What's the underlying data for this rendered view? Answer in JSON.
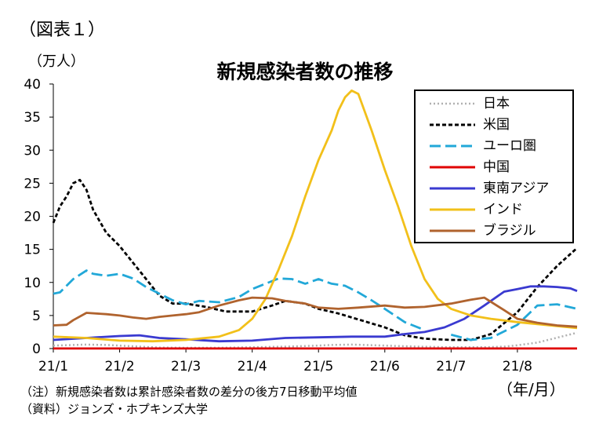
{
  "figure_label": "（図表１）",
  "unit_label": "（万人）",
  "axis_unit": "（年/月）",
  "notes": {
    "note": "（注）新規感染者数は累計感染者数の差分の後方7日移動平均値",
    "source": "（資料）ジョンズ・ホプキンズ大学"
  },
  "chart_data": {
    "type": "line",
    "title": "新規感染者数の推移",
    "ylim": [
      0,
      40
    ],
    "yticks": [
      "0",
      "5",
      "10",
      "15",
      "20",
      "25",
      "30",
      "35",
      "40"
    ],
    "xlim": [
      0,
      7.9
    ],
    "x_tick_labels": [
      "21/1",
      "21/2",
      "21/3",
      "21/4",
      "21/5",
      "21/6",
      "21/7",
      "21/8"
    ],
    "grid": false,
    "legend_position": "top-right",
    "x_unit": "month index (0 = 21/1)",
    "series": [
      {
        "name": "日本",
        "color": "#b0b0b0",
        "style": "dotted",
        "x": [
          0,
          0.3,
          0.5,
          0.8,
          1.0,
          1.3,
          1.6,
          2.0,
          2.5,
          3.0,
          3.5,
          4.0,
          4.2,
          4.5,
          5.0,
          5.5,
          6.0,
          6.5,
          6.8,
          7.0,
          7.3,
          7.5,
          7.7,
          7.9
        ],
        "y": [
          0.45,
          0.55,
          0.6,
          0.55,
          0.45,
          0.3,
          0.15,
          0.12,
          0.12,
          0.2,
          0.3,
          0.45,
          0.55,
          0.6,
          0.45,
          0.3,
          0.2,
          0.2,
          0.3,
          0.5,
          0.9,
          1.4,
          1.9,
          2.4
        ]
      },
      {
        "name": "米国",
        "color": "#000000",
        "style": "dashed",
        "x": [
          0,
          0.1,
          0.2,
          0.3,
          0.4,
          0.5,
          0.6,
          0.8,
          1.0,
          1.2,
          1.4,
          1.6,
          1.8,
          2.0,
          2.3,
          2.6,
          3.0,
          3.3,
          3.5,
          3.8,
          4.0,
          4.3,
          4.6,
          5.0,
          5.3,
          5.6,
          6.0,
          6.3,
          6.6,
          7.0,
          7.3,
          7.6,
          7.9
        ],
        "y": [
          19,
          21.5,
          23,
          25,
          25.5,
          24,
          21,
          17.5,
          15.5,
          13,
          10.5,
          8,
          6.8,
          6.8,
          6.3,
          5.6,
          5.6,
          6.5,
          7.2,
          6.8,
          6,
          5.3,
          4.4,
          3.2,
          2,
          1.5,
          1.3,
          1.3,
          2.2,
          5.5,
          9.3,
          12.5,
          15.2
        ]
      },
      {
        "name": "ユーロ圏",
        "color": "#22a8d8",
        "style": "longdash",
        "x": [
          0,
          0.1,
          0.2,
          0.3,
          0.5,
          0.6,
          0.8,
          1.0,
          1.2,
          1.4,
          1.6,
          1.8,
          2.0,
          2.2,
          2.5,
          2.8,
          3.0,
          3.2,
          3.4,
          3.6,
          3.8,
          4.0,
          4.2,
          4.4,
          4.6,
          4.8,
          5.0,
          5.3,
          5.6,
          6.0,
          6.3,
          6.6,
          7.0,
          7.3,
          7.6,
          7.9
        ],
        "y": [
          8.3,
          8.5,
          9.5,
          10.5,
          11.8,
          11.3,
          11,
          11.3,
          10.6,
          9.3,
          8.3,
          7.3,
          6.7,
          7.2,
          7,
          7.8,
          9,
          9.8,
          10.6,
          10.5,
          9.8,
          10.5,
          9.8,
          9.5,
          8.5,
          7.3,
          6,
          4,
          2.8,
          2.1,
          1.3,
          1.6,
          3.6,
          6.5,
          6.7,
          6
        ],
        "gaps_after_x": [
          5.6,
          6.0
        ]
      },
      {
        "name": "中国",
        "color": "#e00000",
        "style": "solid",
        "x": [
          0,
          7.9
        ],
        "y": [
          0.01,
          0.01
        ]
      },
      {
        "name": "東南アジア",
        "color": "#3a3ad0",
        "style": "solid",
        "x": [
          0,
          0.5,
          1.0,
          1.3,
          1.6,
          2.0,
          2.5,
          3.0,
          3.5,
          4.0,
          4.5,
          4.8,
          5.0,
          5.3,
          5.6,
          5.9,
          6.2,
          6.5,
          6.8,
          7.0,
          7.2,
          7.4,
          7.6,
          7.8,
          7.9
        ],
        "y": [
          1.3,
          1.6,
          1.9,
          2.0,
          1.6,
          1.4,
          1.1,
          1.2,
          1.6,
          1.7,
          1.8,
          1.8,
          1.8,
          2.2,
          2.5,
          3.2,
          4.5,
          6.5,
          8.6,
          9.0,
          9.4,
          9.4,
          9.3,
          9.1,
          8.7
        ]
      },
      {
        "name": "インド",
        "color": "#f2c01a",
        "style": "solid",
        "x": [
          0,
          0.5,
          1.0,
          1.5,
          2.0,
          2.5,
          2.8,
          3.0,
          3.2,
          3.4,
          3.6,
          3.8,
          4.0,
          4.2,
          4.3,
          4.4,
          4.5,
          4.6,
          4.8,
          5.0,
          5.2,
          5.4,
          5.6,
          5.8,
          6.0,
          6.3,
          6.6,
          7.0,
          7.3,
          7.6,
          7.9
        ],
        "y": [
          1.8,
          1.6,
          1.2,
          1.1,
          1.3,
          1.8,
          2.8,
          4.5,
          7.5,
          12,
          17,
          23,
          28.5,
          33,
          36,
          38,
          39,
          38.5,
          33,
          27,
          21.5,
          15.5,
          10.5,
          7.5,
          6,
          5,
          4.5,
          4,
          3.7,
          3.4,
          3.1
        ]
      },
      {
        "name": "ブラジル",
        "color": "#b0632e",
        "style": "solid",
        "x": [
          0,
          0.2,
          0.3,
          0.5,
          0.8,
          1.0,
          1.2,
          1.4,
          1.6,
          1.8,
          2.0,
          2.2,
          2.5,
          2.8,
          3.0,
          3.3,
          3.5,
          3.8,
          4.0,
          4.3,
          4.6,
          5.0,
          5.3,
          5.6,
          6.0,
          6.3,
          6.5,
          6.8,
          7.0,
          7.3,
          7.6,
          7.9
        ],
        "y": [
          3.5,
          3.6,
          4.3,
          5.4,
          5.2,
          5.0,
          4.7,
          4.5,
          4.8,
          5.0,
          5.2,
          5.5,
          6.5,
          7.3,
          7.7,
          7.6,
          7.2,
          6.8,
          6.2,
          6.0,
          6.2,
          6.5,
          6.2,
          6.3,
          6.8,
          7.4,
          7.7,
          5.8,
          4.5,
          3.9,
          3.5,
          3.3
        ]
      }
    ]
  }
}
